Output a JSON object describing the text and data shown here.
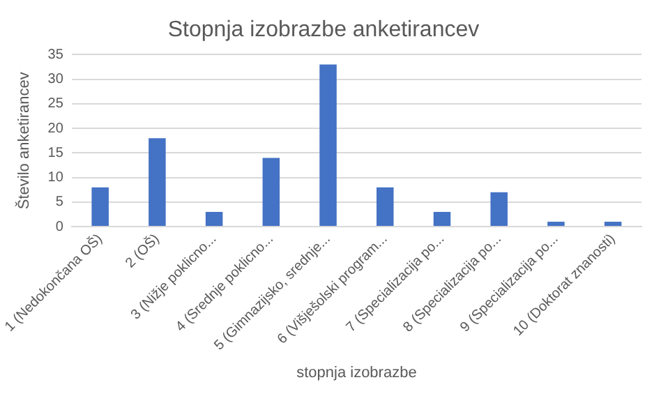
{
  "chart_data": {
    "type": "bar",
    "title": "Stopnja izobrazbe anketirancev",
    "xlabel": "stopnja izobrazbe",
    "ylabel": "Število anketirancev",
    "categories": [
      "1 (Nedokončana OŠ)",
      "2 (OŠ)",
      "3 (Nižje poklicno...",
      "4 (Srednje poklicno...",
      "5 (Gimnazijsko, srednje...",
      "6 (Višješolski program...",
      "7 (Specializacija po...",
      "8 (Specializacija po...",
      "9 (Specializacija po...",
      "10 (Doktorat znanosti)"
    ],
    "values": [
      8,
      18,
      3,
      14,
      33,
      8,
      3,
      7,
      1,
      1
    ],
    "color": "#4472c4",
    "ylim": [
      0,
      35
    ],
    "yticks": [
      0,
      5,
      10,
      15,
      20,
      25,
      30,
      35
    ],
    "grid": "y",
    "legend": false
  }
}
